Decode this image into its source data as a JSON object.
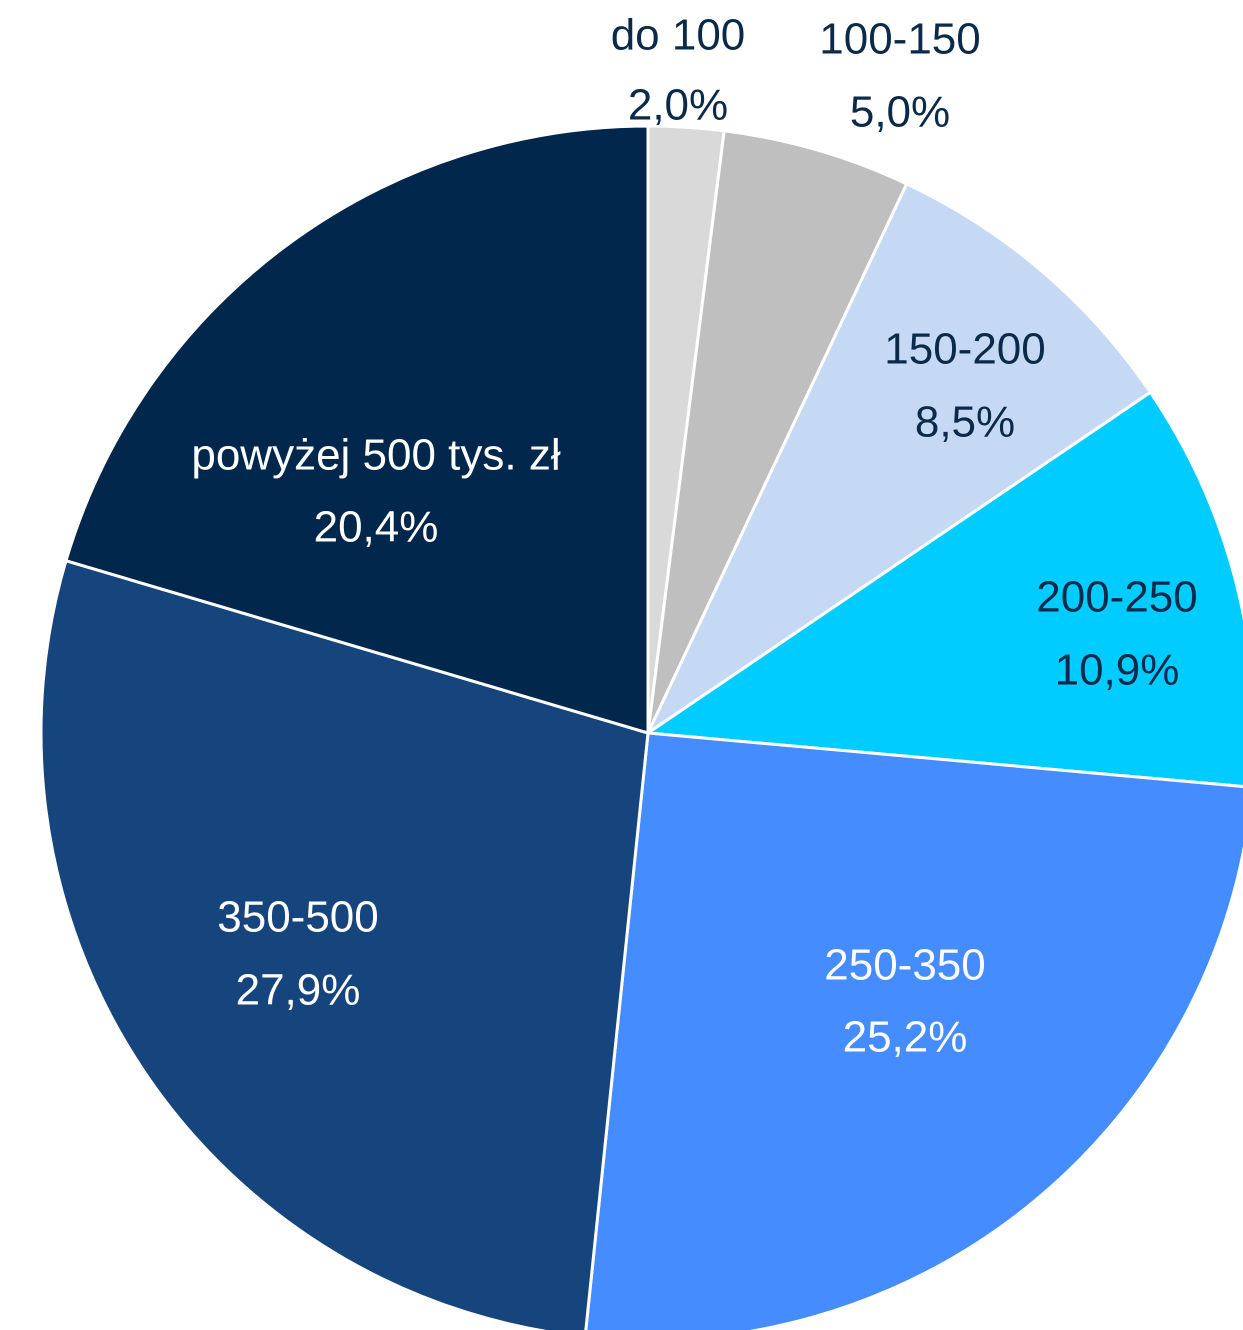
{
  "chart_data": {
    "type": "pie",
    "categories": [
      "do 100",
      "100-150",
      "150-200",
      "200-250",
      "250-350",
      "350-500",
      "powyżej 500 tys. zł"
    ],
    "values": [
      2.0,
      5.0,
      8.5,
      10.9,
      25.2,
      27.9,
      20.4
    ],
    "value_labels": [
      "2,0%",
      "5,0%",
      "8,5%",
      "10,9%",
      "25,2%",
      "27,9%",
      "20,4%"
    ],
    "colors": [
      "#d9d9d9",
      "#bfbfbf",
      "#c5d9f4",
      "#00ccff",
      "#448cff",
      "#16457e",
      "#02274d"
    ],
    "label_colors": [
      "#0b2a4a",
      "#0b2a4a",
      "#0b2a4a",
      "#0b2a4a",
      "#ffffff",
      "#ffffff",
      "#ffffff"
    ]
  }
}
